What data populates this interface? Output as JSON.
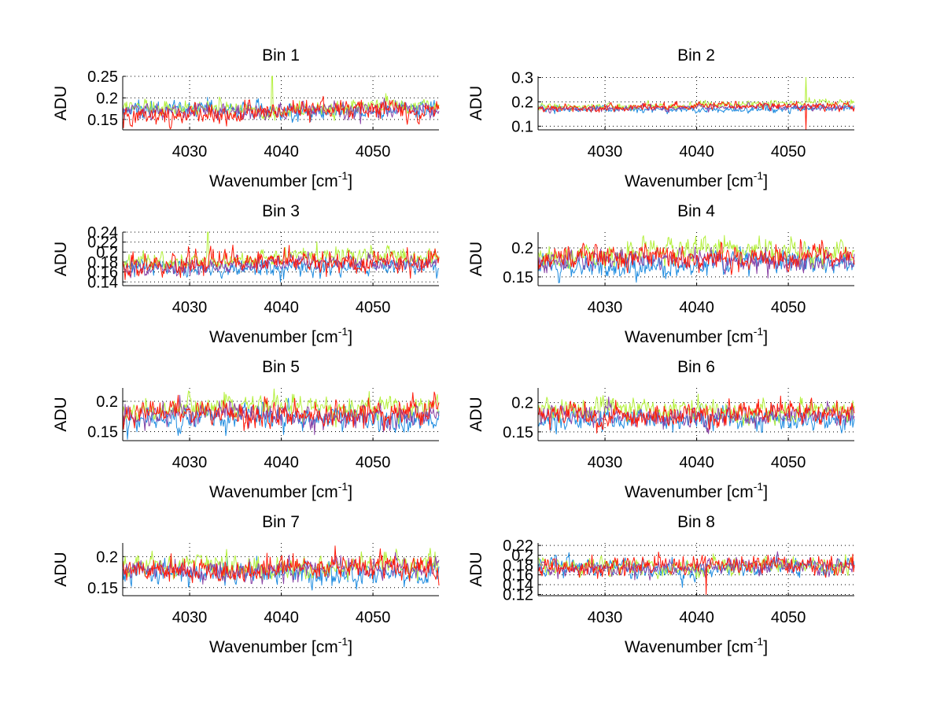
{
  "chart_data": {
    "type": "line",
    "layout": "4x2 subplot grid",
    "shared": {
      "xlabel_main": "Wavenumber [cm",
      "xlabel_sup": "-1",
      "xlabel_end": "]",
      "ylabel": "ADU",
      "xlim": [
        4022.7,
        4057.2
      ],
      "xticks": [
        4030,
        4040,
        4050
      ],
      "xtick_labels": [
        "4030",
        "4040",
        "4050"
      ],
      "grid": true,
      "n_points": 400
    },
    "series_styles": [
      {
        "name": "series-1",
        "color": "#1e8ce0"
      },
      {
        "name": "series-2",
        "color": "#b4f03c"
      },
      {
        "name": "series-3",
        "color": "#8a44a6"
      },
      {
        "name": "series-4",
        "color": "#ff1a0a"
      }
    ],
    "panels": [
      {
        "title": "Bin 1",
        "ylim": [
          0.126,
          0.25
        ],
        "yticks": [
          0.15,
          0.2,
          0.25
        ],
        "ytick_labels": [
          "0.15",
          "0.2",
          "0.25"
        ],
        "series": [
          {
            "mean": 0.17,
            "noise": 0.012,
            "trend": 0.004
          },
          {
            "mean": 0.175,
            "noise": 0.011,
            "trend": 0.004,
            "spikes": [
              [
                4039.0,
                0.25
              ]
            ]
          },
          {
            "mean": 0.168,
            "noise": 0.011,
            "trend": 0.004
          },
          {
            "mean": 0.165,
            "noise": 0.014,
            "trend": 0.008
          }
        ]
      },
      {
        "title": "Bin 2",
        "ylim": [
          0.085,
          0.305
        ],
        "yticks": [
          0.1,
          0.2,
          0.3
        ],
        "ytick_labels": [
          "0.1",
          "0.2",
          "0.3"
        ],
        "series": [
          {
            "mean": 0.168,
            "noise": 0.009,
            "trend": 0.004
          },
          {
            "mean": 0.18,
            "noise": 0.009,
            "trend": 0.015,
            "spikes": [
              [
                4051.9,
                0.3
              ]
            ]
          },
          {
            "mean": 0.172,
            "noise": 0.008,
            "trend": 0.008
          },
          {
            "mean": 0.175,
            "noise": 0.01,
            "trend": 0.012,
            "spikes": [
              [
                4051.9,
                0.087
              ]
            ]
          }
        ]
      },
      {
        "title": "Bin 3",
        "ylim": [
          0.1325,
          0.24
        ],
        "yticks": [
          0.14,
          0.16,
          0.18,
          0.2,
          0.22,
          0.24
        ],
        "ytick_labels": [
          "0.14",
          "0.16",
          "0.18",
          "0.2",
          "0.22",
          "0.24"
        ],
        "series": [
          {
            "mean": 0.168,
            "noise": 0.01,
            "trend": 0.0
          },
          {
            "mean": 0.182,
            "noise": 0.011,
            "trend": 0.012,
            "spikes": [
              [
                4032.0,
                0.24
              ]
            ]
          },
          {
            "mean": 0.172,
            "noise": 0.01,
            "trend": 0.006
          },
          {
            "mean": 0.175,
            "noise": 0.013,
            "trend": 0.01
          }
        ]
      },
      {
        "title": "Bin 4",
        "ylim": [
          0.135,
          0.227
        ],
        "yticks": [
          0.15,
          0.2
        ],
        "ytick_labels": [
          "0.15",
          "0.2"
        ],
        "series": [
          {
            "mean": 0.17,
            "noise": 0.012,
            "trend": 0.004
          },
          {
            "mean": 0.188,
            "noise": 0.012,
            "trend": 0.01
          },
          {
            "mean": 0.176,
            "noise": 0.011,
            "trend": 0.006
          },
          {
            "mean": 0.18,
            "noise": 0.013,
            "trend": 0.008
          }
        ]
      },
      {
        "title": "Bin 5",
        "ylim": [
          0.135,
          0.222
        ],
        "yticks": [
          0.15,
          0.2
        ],
        "ytick_labels": [
          "0.15",
          "0.2"
        ],
        "series": [
          {
            "mean": 0.17,
            "noise": 0.012,
            "trend": 0.002
          },
          {
            "mean": 0.188,
            "noise": 0.011,
            "trend": 0.004
          },
          {
            "mean": 0.176,
            "noise": 0.011,
            "trend": 0.002
          },
          {
            "mean": 0.18,
            "noise": 0.013,
            "trend": 0.002
          }
        ]
      },
      {
        "title": "Bin 6",
        "ylim": [
          0.135,
          0.225
        ],
        "yticks": [
          0.15,
          0.2
        ],
        "ytick_labels": [
          "0.15",
          "0.2"
        ],
        "series": [
          {
            "mean": 0.17,
            "noise": 0.011,
            "trend": 0.002
          },
          {
            "mean": 0.186,
            "noise": 0.011,
            "trend": 0.004
          },
          {
            "mean": 0.175,
            "noise": 0.01,
            "trend": 0.002
          },
          {
            "mean": 0.179,
            "noise": 0.012,
            "trend": 0.004
          }
        ]
      },
      {
        "title": "Bin 7",
        "ylim": [
          0.137,
          0.222
        ],
        "yticks": [
          0.15,
          0.2
        ],
        "ytick_labels": [
          "0.15",
          "0.2"
        ],
        "series": [
          {
            "mean": 0.172,
            "noise": 0.011,
            "trend": 0.002
          },
          {
            "mean": 0.184,
            "noise": 0.01,
            "trend": 0.003
          },
          {
            "mean": 0.176,
            "noise": 0.01,
            "trend": 0.002
          },
          {
            "mean": 0.179,
            "noise": 0.012,
            "trend": 0.003
          }
        ]
      },
      {
        "title": "Bin 8",
        "ylim": [
          0.1175,
          0.225
        ],
        "yticks": [
          0.12,
          0.14,
          0.16,
          0.18,
          0.2,
          0.22
        ],
        "ytick_labels": [
          "0.12",
          "0.14",
          "0.16",
          "0.18",
          "0.2",
          "0.22"
        ],
        "series": [
          {
            "mean": 0.172,
            "noise": 0.011,
            "trend": 0.003
          },
          {
            "mean": 0.176,
            "noise": 0.01,
            "trend": 0.004
          },
          {
            "mean": 0.174,
            "noise": 0.01,
            "trend": 0.003
          },
          {
            "mean": 0.175,
            "noise": 0.012,
            "trend": 0.004,
            "spikes": [
              [
                4041.0,
                0.12
              ]
            ]
          }
        ]
      }
    ]
  }
}
